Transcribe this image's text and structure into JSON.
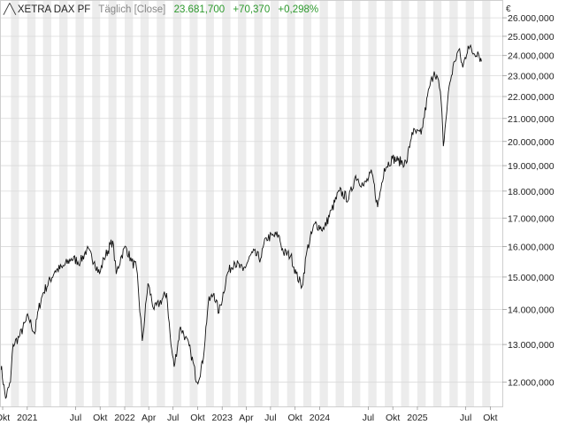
{
  "header": {
    "name": "XETRA DAX PF",
    "frequency": "Täglich [Close]",
    "last": "23.681,700",
    "change": "+70,370",
    "change_pct": "+0,298%"
  },
  "currency": "€",
  "colors": {
    "positive": "#2e9a2e",
    "line": "#111111",
    "band_dark": "#ececec",
    "band_light": "#f7f7f7"
  },
  "chart_data": {
    "type": "line",
    "title": "",
    "xlabel": "",
    "ylabel": "",
    "y_scale": "log",
    "ylim": [
      11400,
      27000
    ],
    "xlim": [
      "2020-09-21",
      "2025-11-15"
    ],
    "y_ticks": [
      {
        "value": 12000,
        "label": "12.000,000"
      },
      {
        "value": 13000,
        "label": "13.000,000"
      },
      {
        "value": 14000,
        "label": "14.000,000"
      },
      {
        "value": 15000,
        "label": "15.000,000"
      },
      {
        "value": 16000,
        "label": "16.000,000"
      },
      {
        "value": 17000,
        "label": "17.000,000"
      },
      {
        "value": 18000,
        "label": "18.000,000"
      },
      {
        "value": 19000,
        "label": "19.000,000"
      },
      {
        "value": 20000,
        "label": "20.000,000"
      },
      {
        "value": 21000,
        "label": "21.000,000"
      },
      {
        "value": 22000,
        "label": "22.000,000"
      },
      {
        "value": 23000,
        "label": "23.000,000"
      },
      {
        "value": 24000,
        "label": "24.000,000"
      },
      {
        "value": 25000,
        "label": "25.000,000"
      },
      {
        "value": 26000,
        "label": "26.000,000"
      }
    ],
    "x_ticks": [
      {
        "date": "2020-10-01",
        "label": "Okt"
      },
      {
        "date": "2021-01-01",
        "label": "2021"
      },
      {
        "date": "2021-07-01",
        "label": "Jul"
      },
      {
        "date": "2021-10-01",
        "label": "Okt"
      },
      {
        "date": "2022-01-01",
        "label": "2022"
      },
      {
        "date": "2022-04-01",
        "label": "Apr"
      },
      {
        "date": "2022-07-01",
        "label": "Jul"
      },
      {
        "date": "2022-10-01",
        "label": "Okt"
      },
      {
        "date": "2023-01-01",
        "label": "2023"
      },
      {
        "date": "2023-04-01",
        "label": "Apr"
      },
      {
        "date": "2023-07-01",
        "label": "Jul"
      },
      {
        "date": "2023-10-01",
        "label": "Okt"
      },
      {
        "date": "2024-01-01",
        "label": "2024"
      },
      {
        "date": "2024-07-01",
        "label": "Jul"
      },
      {
        "date": "2024-10-01",
        "label": "Okt"
      },
      {
        "date": "2025-01-01",
        "label": "2025"
      },
      {
        "date": "2025-07-01",
        "label": "Jul"
      },
      {
        "date": "2025-10-01",
        "label": "Okt"
      }
    ],
    "series": [
      {
        "x": [
          "2020-09-21",
          "2020-10-12",
          "2020-10-30",
          "2020-11-09",
          "2020-12-01",
          "2021-01-05",
          "2021-01-29",
          "2021-02-12",
          "2021-03-01",
          "2021-04-15",
          "2021-05-12",
          "2021-06-15",
          "2021-07-19",
          "2021-08-12",
          "2021-09-10",
          "2021-09-29",
          "2021-10-15",
          "2021-11-17",
          "2021-11-30",
          "2021-12-20",
          "2022-01-05",
          "2022-01-27",
          "2022-02-14",
          "2022-03-08",
          "2022-03-29",
          "2022-04-21",
          "2022-05-12",
          "2022-06-07",
          "2022-06-23",
          "2022-07-05",
          "2022-07-29",
          "2022-08-16",
          "2022-09-05",
          "2022-09-29",
          "2022-10-20",
          "2022-11-10",
          "2022-12-01",
          "2022-12-20",
          "2023-01-20",
          "2023-02-15",
          "2023-03-20",
          "2023-04-25",
          "2023-05-25",
          "2023-06-15",
          "2023-07-31",
          "2023-08-18",
          "2023-09-15",
          "2023-10-05",
          "2023-10-27",
          "2023-11-15",
          "2023-12-14",
          "2024-01-17",
          "2024-02-15",
          "2024-03-15",
          "2024-04-19",
          "2024-05-15",
          "2024-06-14",
          "2024-07-15",
          "2024-08-05",
          "2024-08-30",
          "2024-09-30",
          "2024-10-20",
          "2024-11-21",
          "2024-12-12",
          "2025-01-15",
          "2025-02-14",
          "2025-03-05",
          "2025-03-18",
          "2025-03-31",
          "2025-04-08",
          "2025-04-30",
          "2025-05-20",
          "2025-06-05",
          "2025-06-20",
          "2025-07-10",
          "2025-07-31",
          "2025-08-15",
          "2025-08-29"
        ],
        "values": [
          12600,
          11600,
          12000,
          13000,
          13200,
          13800,
          13300,
          14000,
          14500,
          15200,
          15300,
          15600,
          15500,
          15900,
          15500,
          15100,
          15600,
          16200,
          15100,
          15700,
          16000,
          15500,
          15300,
          13100,
          14800,
          14000,
          14200,
          14500,
          13000,
          12400,
          13500,
          13200,
          12800,
          12000,
          12500,
          14200,
          14500,
          13900,
          15100,
          15500,
          15200,
          15800,
          15600,
          16300,
          16400,
          15800,
          15700,
          15100,
          14700,
          15900,
          16800,
          16600,
          17300,
          18000,
          17700,
          18600,
          18200,
          18700,
          17400,
          18900,
          19300,
          19200,
          19100,
          20400,
          20300,
          22400,
          23200,
          22900,
          21800,
          19800,
          22500,
          23700,
          24300,
          23400,
          24500,
          24100,
          24200,
          23700
        ]
      }
    ],
    "shaded_months": [
      "2020-11",
      "2021-01",
      "2021-03",
      "2021-05",
      "2021-07",
      "2021-09",
      "2021-11",
      "2022-01",
      "2022-03",
      "2022-05",
      "2022-07",
      "2022-09",
      "2022-11",
      "2023-01",
      "2023-03",
      "2023-05",
      "2023-07",
      "2023-09",
      "2023-11",
      "2024-01",
      "2024-03",
      "2024-05",
      "2024-07",
      "2024-09",
      "2024-11",
      "2025-01",
      "2025-03",
      "2025-05",
      "2025-07",
      "2025-09"
    ]
  }
}
